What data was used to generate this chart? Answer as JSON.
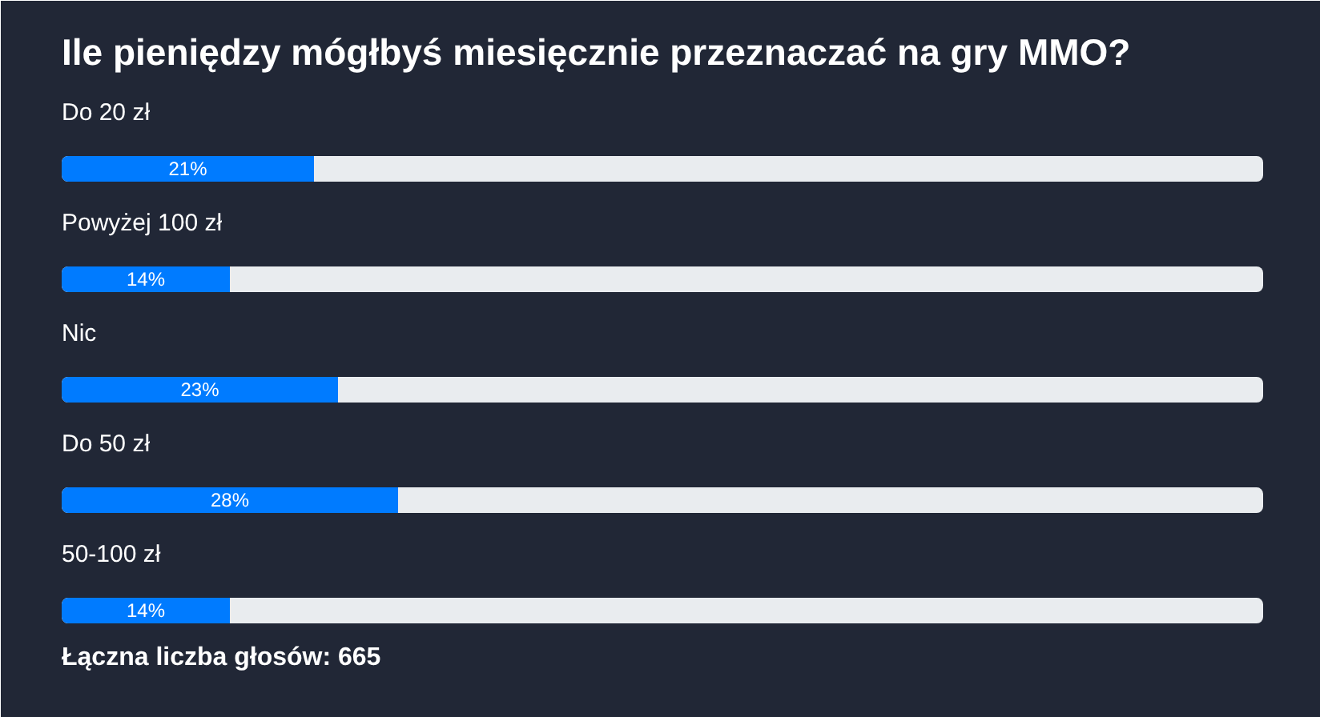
{
  "chart_data": {
    "type": "bar",
    "orientation": "horizontal",
    "title": "Ile pieniędzy mógłbyś miesięcznie przeznaczać na gry MMO?",
    "categories": [
      "Do 20 zł",
      "Powyżej 100 zł",
      "Nic",
      "Do 50 zł",
      "50-100 zł"
    ],
    "values": [
      21,
      14,
      23,
      28,
      14
    ],
    "value_labels": [
      "21%",
      "14%",
      "23%",
      "28%",
      "14%"
    ],
    "color": "#007bff",
    "xlim": [
      0,
      100
    ],
    "tick_labels": "y",
    "annotations": [
      "Łączna liczba głosów: 665"
    ]
  }
}
